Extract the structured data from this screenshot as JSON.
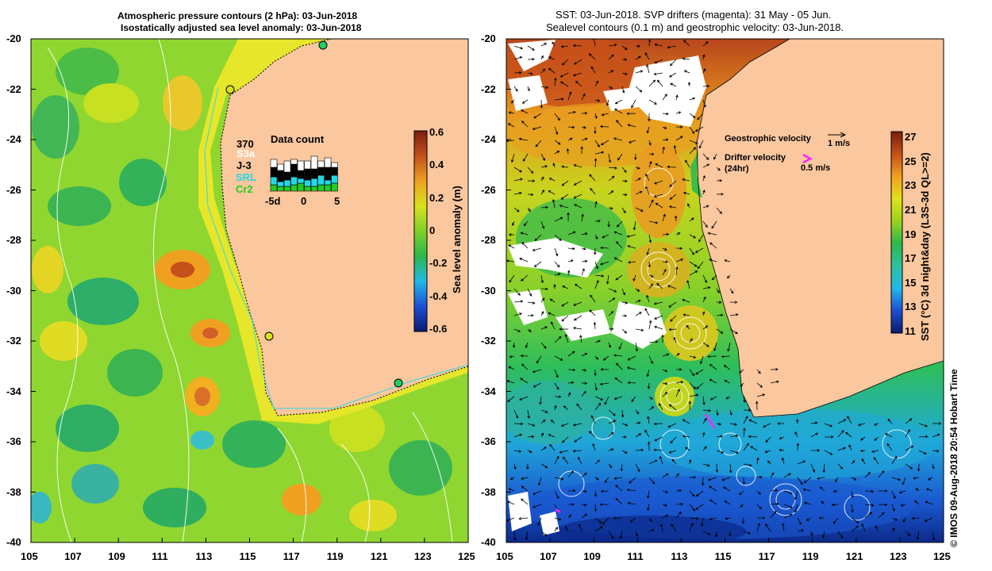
{
  "left_panel": {
    "title_line1": "Atmospheric pressure contours (2 hPa): 03-Jun-2018",
    "title_line2": "Isostatically adjusted sea level anomaly: 03-Jun-2018",
    "colorbar": {
      "label": "Sea level anomaly (m)",
      "ticks": [
        "0.6",
        "0.4",
        "0.2",
        "0",
        "-0.2",
        "-0.4",
        "-0.6"
      ],
      "colors": [
        "#0a1a6e",
        "#1a4fd6",
        "#22b8e8",
        "#2bb84a",
        "#7fd12a",
        "#d8e21a",
        "#f0a020",
        "#c4501a",
        "#7a1e0e"
      ]
    },
    "data_count": {
      "title": "Data count",
      "total": "370",
      "missions": [
        {
          "name": "S3a",
          "color": "#ffffff"
        },
        {
          "name": "J-3",
          "color": "#000000"
        },
        {
          "name": "SRL",
          "color": "#22d8e8"
        },
        {
          "name": "Cr2",
          "color": "#22cc22"
        }
      ],
      "axis_labels": [
        "-5d",
        "0",
        "5"
      ]
    },
    "coastal_stations": 4
  },
  "right_panel": {
    "title_line1": "SST: 03-Jun-2018. SVP drifters (magenta): 31 May - 05 Jun.",
    "title_line2": "Sealevel contours (0.1 m) and geostrophic velocity: 03-Jun-2018.",
    "legend": {
      "geostrophic": "Geostrophic velocity",
      "geostrophic_scale": "1 m/s",
      "drifter": "Drifter velocity",
      "drifter_period": "(24hr)",
      "drifter_scale": "0.5 m/s",
      "drifter_color": "#ff22ff"
    },
    "colorbar": {
      "label": "SST (°C) 3d night&day (L3S-3d QL>=2)",
      "ticks": [
        "27",
        "25",
        "23",
        "21",
        "19",
        "17",
        "15",
        "13",
        "11"
      ],
      "colors": [
        "#0a1a6e",
        "#1a4fd6",
        "#22b8e8",
        "#2bc2a0",
        "#2bb84a",
        "#9ad21e",
        "#e0e21a",
        "#f0a020",
        "#c4501a",
        "#7a1e0e"
      ]
    }
  },
  "axes": {
    "lat_ticks": [
      "-20",
      "-22",
      "-24",
      "-26",
      "-28",
      "-30",
      "-32",
      "-34",
      "-36",
      "-38",
      "-40"
    ],
    "lon_ticks": [
      "105",
      "107",
      "109",
      "111",
      "113",
      "115",
      "117",
      "119",
      "121",
      "123",
      "125"
    ]
  },
  "credit": "© IMOS 09-Aug-2018 20:54 Hobart Time",
  "colors": {
    "land": "#fbc79e",
    "ocean_left": "#8fd630",
    "coast_shelf": "#e6e62a"
  }
}
